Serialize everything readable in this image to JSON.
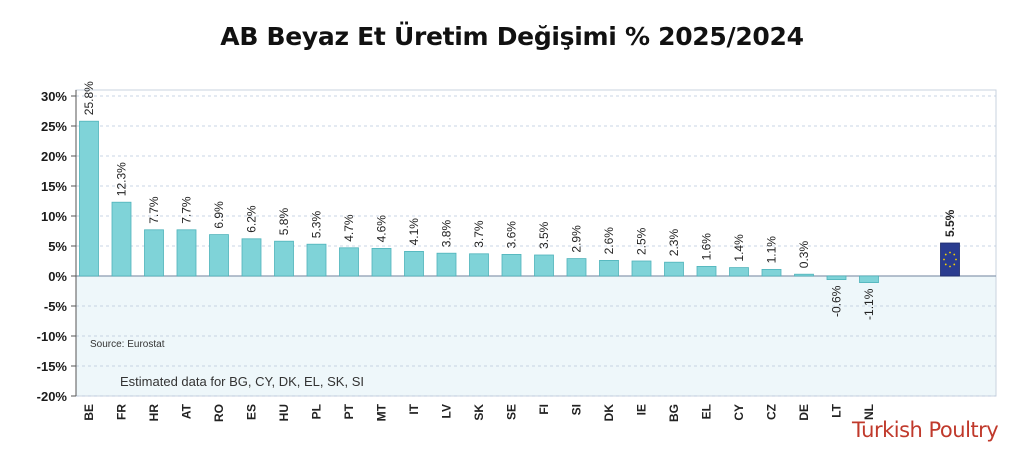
{
  "page": {
    "title": "AB Beyaz Et Üretim Değişimi % 2025/2024"
  },
  "chart_data": {
    "type": "bar",
    "categories": [
      "BE",
      "FR",
      "HR",
      "AT",
      "RO",
      "ES",
      "HU",
      "PL",
      "PT",
      "MT",
      "IT",
      "LV",
      "SK",
      "SE",
      "FI",
      "SI",
      "DK",
      "IE",
      "BG",
      "EL",
      "CY",
      "CZ",
      "DE",
      "LT",
      "NL",
      "EU"
    ],
    "category_labels": [
      "BE",
      "FR",
      "HR",
      "AT",
      "RO",
      "ES",
      "HU",
      "PL",
      "PT",
      "MT",
      "IT",
      "LV",
      "SK",
      "SE",
      "FI",
      "SI",
      "DK",
      "IE",
      "BG",
      "EL",
      "CY",
      "CZ",
      "DE",
      "LT",
      "NL",
      ""
    ],
    "values": [
      25.8,
      12.3,
      7.7,
      7.7,
      6.9,
      6.2,
      5.8,
      5.3,
      4.7,
      4.6,
      4.1,
      3.8,
      3.7,
      3.6,
      3.5,
      2.9,
      2.6,
      2.5,
      2.3,
      1.6,
      1.4,
      1.1,
      0.3,
      -0.6,
      -1.1,
      5.5
    ],
    "value_labels": [
      "25.8%",
      "12.3%",
      "7.7%",
      "7.7%",
      "6.9%",
      "6.2%",
      "5.8%",
      "5.3%",
      "4.7%",
      "4.6%",
      "4.1%",
      "3.8%",
      "3.7%",
      "3.6%",
      "3.5%",
      "2.9%",
      "2.6%",
      "2.5%",
      "2.3%",
      "1.6%",
      "1.4%",
      "1.1%",
      "0.3%",
      "-0.6%",
      "-1.1%",
      "5.5%"
    ],
    "ylim": [
      -20,
      30
    ],
    "yticks": [
      30,
      25,
      20,
      15,
      10,
      5,
      0,
      -5,
      -10,
      -15,
      -20
    ],
    "ytick_labels": [
      "30%",
      "25%",
      "20%",
      "15%",
      "10%",
      "5%",
      "0%",
      "-5%",
      "-10%",
      "-15%",
      "-20%"
    ],
    "grid": true,
    "colors": {
      "bar": "#7fd3d8",
      "bar_edge": "#4fb3bb",
      "eu_bar": "#2a3c8f",
      "eu_star": "#f5d300",
      "negative_zone": "#eef7fa",
      "grid": "#b8c8dc"
    },
    "annotations": {
      "source": "Source: Eurostat",
      "note": "Estimated data for BG, CY, DK, EL, SK, SI"
    }
  },
  "brand": {
    "text": "Turkish Poultry"
  }
}
